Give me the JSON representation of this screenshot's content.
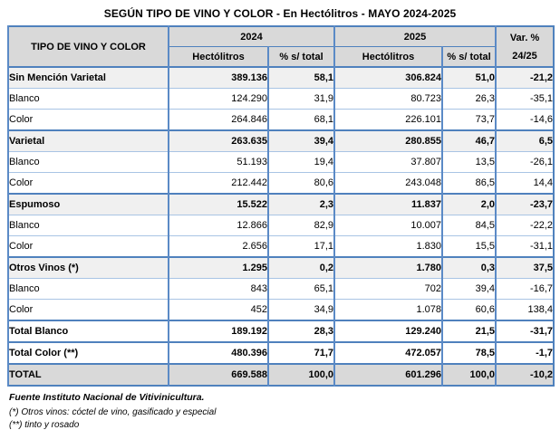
{
  "title": "SEGÚN TIPO DE VINO Y COLOR - En Hectólitros - MAYO 2024-2025",
  "table": {
    "corner_header": "TIPO DE VINO Y COLOR",
    "year_headers": [
      "2024",
      "2025"
    ],
    "var_header": {
      "line1": "Var. %",
      "line2": "24/25"
    },
    "sub_headers": [
      "Hectólitros",
      "% s/ total",
      "Hectólitros",
      "% s/ total"
    ],
    "rows": [
      {
        "label": "Sin Mención Varietal",
        "style": "category",
        "values": [
          "389.136",
          "58,1",
          "306.824",
          "51,0",
          "-21,2"
        ]
      },
      {
        "label": "Blanco",
        "style": "sub",
        "values": [
          "124.290",
          "31,9",
          "80.723",
          "26,3",
          "-35,1"
        ]
      },
      {
        "label": "Color",
        "style": "sub",
        "values": [
          "264.846",
          "68,1",
          "226.101",
          "73,7",
          "-14,6"
        ]
      },
      {
        "label": "Varietal",
        "style": "category",
        "values": [
          "263.635",
          "39,4",
          "280.855",
          "46,7",
          "6,5"
        ]
      },
      {
        "label": "Blanco",
        "style": "sub",
        "values": [
          "51.193",
          "19,4",
          "37.807",
          "13,5",
          "-26,1"
        ]
      },
      {
        "label": "Color",
        "style": "sub",
        "values": [
          "212.442",
          "80,6",
          "243.048",
          "86,5",
          "14,4"
        ]
      },
      {
        "label": "Espumoso",
        "style": "category",
        "values": [
          "15.522",
          "2,3",
          "11.837",
          "2,0",
          "-23,7"
        ]
      },
      {
        "label": "Blanco",
        "style": "sub",
        "values": [
          "12.866",
          "82,9",
          "10.007",
          "84,5",
          "-22,2"
        ]
      },
      {
        "label": "Color",
        "style": "sub",
        "values": [
          "2.656",
          "17,1",
          "1.830",
          "15,5",
          "-31,1"
        ]
      },
      {
        "label": "Otros Vinos  (*)",
        "style": "category",
        "values": [
          "1.295",
          "0,2",
          "1.780",
          "0,3",
          "37,5"
        ]
      },
      {
        "label": "Blanco",
        "style": "sub",
        "values": [
          "843",
          "65,1",
          "702",
          "39,4",
          "-16,7"
        ]
      },
      {
        "label": "Color",
        "style": "sub",
        "values": [
          "452",
          "34,9",
          "1.078",
          "60,6",
          "138,4"
        ]
      },
      {
        "label": "Total Blanco",
        "style": "total",
        "values": [
          "189.192",
          "28,3",
          "129.240",
          "21,5",
          "-31,7"
        ]
      },
      {
        "label": "Total Color (**)",
        "style": "total",
        "values": [
          "480.396",
          "71,7",
          "472.057",
          "78,5",
          "-1,7"
        ]
      },
      {
        "label": "TOTAL",
        "style": "grand-total",
        "values": [
          "669.588",
          "100,0",
          "601.296",
          "100,0",
          "-10,2"
        ]
      }
    ]
  },
  "footer": {
    "source": "Fuente Instituto Nacional de Vitivinicultura.",
    "note1": "(*) Otros vinos: cóctel de vino, gasificado y especial",
    "note2": "(**) tinto y rosado"
  },
  "colors": {
    "border_blue_strong": "#4f81bd",
    "border_blue_light": "#a9c4e4",
    "header_gray": "#d9d9d9",
    "category_row_gray": "#f0f0f0",
    "text": "#000000",
    "background": "#ffffff"
  }
}
